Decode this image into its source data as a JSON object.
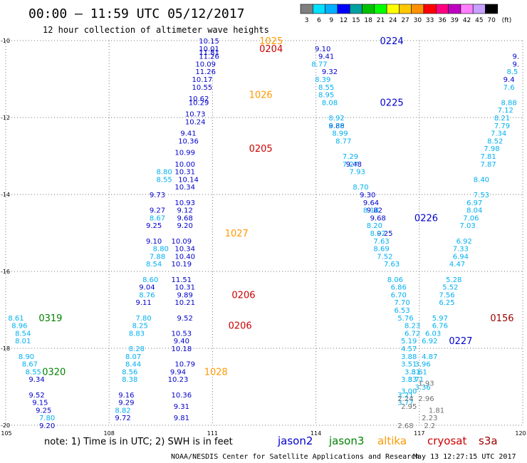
{
  "chart_data": {
    "type": "scatter",
    "title": "00:00 – 11:59 UTC 05/12/2017",
    "subtitle": "12 hour collection of altimeter wave heights",
    "x_ticks": [
      "105",
      "108",
      "111",
      "114",
      "117",
      "120"
    ],
    "y_ticks": [
      "-10",
      "-12",
      "-14",
      "-16",
      "-18",
      "-20"
    ],
    "xlim": [
      105,
      120
    ],
    "ylim": [
      -20,
      -10
    ],
    "grid": true,
    "legend": {
      "labels": [
        "3",
        "6",
        "9",
        "12",
        "15",
        "18",
        "21",
        "24",
        "27",
        "30",
        "33",
        "36",
        "39",
        "42",
        "45",
        "70",
        "(ft)"
      ],
      "colors": [
        "#7f7f7f",
        "#00e0ff",
        "#00b0ff",
        "#0000ff",
        "#00a0a0",
        "#00c000",
        "#00ff00",
        "#ffff00",
        "#ffc800",
        "#ff9000",
        "#ff0000",
        "#ff0080",
        "#c000c0",
        "#ff80ff",
        "#c8a0ff",
        "#000000"
      ]
    },
    "sat_colors": {
      "j2": "#0000cc",
      "j3": "#008000",
      "alt": "#ff9900",
      "cry": "#cc0000",
      "s3a": "#990000"
    },
    "value_colors": {
      "light": "#00b0f0",
      "gray": "#707070"
    },
    "series": [
      {
        "name": "jason2",
        "values": [
          {
            "x": 110.9,
            "y": -10.0,
            "v": "10.15"
          },
          {
            "x": 110.9,
            "y": -10.2,
            "v": "10.01"
          },
          {
            "x": 110.9,
            "y": -10.3,
            "v": "11.81"
          },
          {
            "x": 110.9,
            "y": -10.4,
            "v": "11.26"
          },
          {
            "x": 110.8,
            "y": -10.6,
            "v": "10.09"
          },
          {
            "x": 110.8,
            "y": -10.8,
            "v": "11.26"
          },
          {
            "x": 110.7,
            "y": -11.0,
            "v": "10.17"
          },
          {
            "x": 110.7,
            "y": -11.2,
            "v": "10.55"
          },
          {
            "x": 110.6,
            "y": -11.5,
            "v": "10.62"
          },
          {
            "x": 110.6,
            "y": -11.6,
            "v": "10.29"
          },
          {
            "x": 110.5,
            "y": -11.9,
            "v": "10.73"
          },
          {
            "x": 110.5,
            "y": -12.1,
            "v": "10.24"
          },
          {
            "x": 110.3,
            "y": -12.4,
            "v": "9.41"
          },
          {
            "x": 110.3,
            "y": -12.6,
            "v": "10.36"
          },
          {
            "x": 110.2,
            "y": -12.9,
            "v": "10.99"
          },
          {
            "x": 110.2,
            "y": -13.2,
            "v": "10.00"
          },
          {
            "x": 110.2,
            "y": -13.4,
            "v": "10.31"
          },
          {
            "x": 110.3,
            "y": -13.6,
            "v": "10.14"
          },
          {
            "x": 110.2,
            "y": -13.8,
            "v": "10.34"
          },
          {
            "x": 110.2,
            "y": -14.2,
            "v": "10.93"
          },
          {
            "x": 110.2,
            "y": -14.4,
            "v": "9.12"
          },
          {
            "x": 110.2,
            "y": -14.6,
            "v": "9.68"
          },
          {
            "x": 110.2,
            "y": -14.8,
            "v": "9.20"
          },
          {
            "x": 110.1,
            "y": -15.2,
            "v": "10.09"
          },
          {
            "x": 110.2,
            "y": -15.4,
            "v": "10.34"
          },
          {
            "x": 110.2,
            "y": -15.6,
            "v": "10.40"
          },
          {
            "x": 110.1,
            "y": -15.8,
            "v": "10.19"
          },
          {
            "x": 110.1,
            "y": -16.2,
            "v": "11.51"
          },
          {
            "x": 110.2,
            "y": -16.4,
            "v": "10.31"
          },
          {
            "x": 110.2,
            "y": -16.6,
            "v": "9.89"
          },
          {
            "x": 110.2,
            "y": -16.8,
            "v": "10.21"
          },
          {
            "x": 110.2,
            "y": -17.2,
            "v": "9.52"
          },
          {
            "x": 110.1,
            "y": -17.6,
            "v": "10.53"
          },
          {
            "x": 110.1,
            "y": -17.8,
            "v": "9.40"
          },
          {
            "x": 110.1,
            "y": -18.0,
            "v": "10.18"
          },
          {
            "x": 110.2,
            "y": -18.4,
            "v": "10.79"
          },
          {
            "x": 110.0,
            "y": -18.6,
            "v": "9.94"
          },
          {
            "x": 110.0,
            "y": -18.8,
            "v": "10.23"
          },
          {
            "x": 110.1,
            "y": -19.2,
            "v": "10.36"
          },
          {
            "x": 110.1,
            "y": -19.5,
            "v": "9.31"
          },
          {
            "x": 110.1,
            "y": -19.8,
            "v": "9.81"
          },
          {
            "x": 114.2,
            "y": -10.2,
            "v": "9.10"
          },
          {
            "x": 114.3,
            "y": -10.4,
            "v": "9.41"
          },
          {
            "x": 114.4,
            "y": -10.8,
            "v": "9.32"
          },
          {
            "x": 114.6,
            "y": -12.2,
            "v": "9.88"
          },
          {
            "x": 115.1,
            "y": -13.2,
            "v": "9.48"
          },
          {
            "x": 115.5,
            "y": -14.0,
            "v": "9.30"
          },
          {
            "x": 115.6,
            "y": -14.2,
            "v": "9.64"
          },
          {
            "x": 115.7,
            "y": -14.4,
            "v": "9.82"
          },
          {
            "x": 115.8,
            "y": -14.6,
            "v": "9.68"
          },
          {
            "x": 116.0,
            "y": -15.0,
            "v": "9.25"
          },
          {
            "x": 114.1,
            "y": -10.6,
            "v": "8.77"
          },
          {
            "x": 114.2,
            "y": -11.0,
            "v": "8.39"
          },
          {
            "x": 114.3,
            "y": -11.2,
            "v": "8.55"
          },
          {
            "x": 114.3,
            "y": -11.4,
            "v": "8.95"
          },
          {
            "x": 114.4,
            "y": -11.6,
            "v": "8.08"
          },
          {
            "x": 114.6,
            "y": -12.0,
            "v": "8.92"
          },
          {
            "x": 114.6,
            "y": -12.2,
            "v": "8.50"
          },
          {
            "x": 114.7,
            "y": -12.4,
            "v": "8.99"
          },
          {
            "x": 114.8,
            "y": -12.6,
            "v": "8.77"
          },
          {
            "x": 115.0,
            "y": -13.0,
            "v": "7.29"
          },
          {
            "x": 115.0,
            "y": -13.2,
            "v": "7.27"
          },
          {
            "x": 115.2,
            "y": -13.4,
            "v": "7.93"
          },
          {
            "x": 115.3,
            "y": -13.8,
            "v": "8.70"
          },
          {
            "x": 115.6,
            "y": -14.4,
            "v": "8.14"
          },
          {
            "x": 115.7,
            "y": -14.8,
            "v": "8.20"
          },
          {
            "x": 115.8,
            "y": -15.0,
            "v": "8.07"
          },
          {
            "x": 115.9,
            "y": -15.2,
            "v": "7.63"
          },
          {
            "x": 115.9,
            "y": -15.4,
            "v": "8.69"
          },
          {
            "x": 116.0,
            "y": -15.6,
            "v": "7.52"
          },
          {
            "x": 116.2,
            "y": -15.8,
            "v": "7.63"
          },
          {
            "x": 116.3,
            "y": -16.2,
            "v": "8.06"
          },
          {
            "x": 116.4,
            "y": -16.4,
            "v": "6.86"
          },
          {
            "x": 116.4,
            "y": -16.6,
            "v": "6.70"
          },
          {
            "x": 116.5,
            "y": -16.8,
            "v": "7.70"
          },
          {
            "x": 116.5,
            "y": -17.0,
            "v": "6.53"
          },
          {
            "x": 116.6,
            "y": -17.2,
            "v": "5.76"
          },
          {
            "x": 116.8,
            "y": -17.4,
            "v": "8.23"
          },
          {
            "x": 116.8,
            "y": -17.6,
            "v": "6.72"
          },
          {
            "x": 116.7,
            "y": -17.8,
            "v": "5.19"
          },
          {
            "x": 116.7,
            "y": -18.0,
            "v": "4.57"
          },
          {
            "x": 116.7,
            "y": -18.2,
            "v": "3.88"
          },
          {
            "x": 116.7,
            "y": -18.4,
            "v": "3.51"
          },
          {
            "x": 116.8,
            "y": -18.6,
            "v": "3.81"
          },
          {
            "x": 116.7,
            "y": -18.8,
            "v": "3.83"
          },
          {
            "x": 119.8,
            "y": -10.4,
            "v": "9."
          },
          {
            "x": 119.8,
            "y": -10.6,
            "v": "9."
          },
          {
            "x": 119.7,
            "y": -10.8,
            "v": "8.5"
          },
          {
            "x": 119.6,
            "y": -11.0,
            "v": "9.4"
          },
          {
            "x": 119.6,
            "y": -11.2,
            "v": "7.6"
          },
          {
            "x": 119.6,
            "y": -11.6,
            "v": "8.88"
          },
          {
            "x": 119.5,
            "y": -11.8,
            "v": "7.12"
          },
          {
            "x": 119.4,
            "y": -12.0,
            "v": "8.21"
          },
          {
            "x": 119.4,
            "y": -12.2,
            "v": "7.79"
          },
          {
            "x": 119.3,
            "y": -12.4,
            "v": "7.34"
          },
          {
            "x": 119.2,
            "y": -12.6,
            "v": "8.52"
          },
          {
            "x": 119.1,
            "y": -12.8,
            "v": "7.98"
          },
          {
            "x": 119.0,
            "y": -13.0,
            "v": "7.81"
          },
          {
            "x": 119.0,
            "y": -13.2,
            "v": "7.87"
          },
          {
            "x": 118.8,
            "y": -13.6,
            "v": "8.40"
          },
          {
            "x": 118.8,
            "y": -14.0,
            "v": "7.53"
          },
          {
            "x": 118.6,
            "y": -14.2,
            "v": "6.97"
          },
          {
            "x": 118.6,
            "y": -14.4,
            "v": "8.04"
          },
          {
            "x": 118.5,
            "y": -14.6,
            "v": "7.06"
          },
          {
            "x": 118.4,
            "y": -14.8,
            "v": "7.03"
          },
          {
            "x": 118.3,
            "y": -15.2,
            "v": "6.92"
          },
          {
            "x": 118.2,
            "y": -15.4,
            "v": "7.33"
          },
          {
            "x": 118.2,
            "y": -15.6,
            "v": "6.94"
          },
          {
            "x": 118.1,
            "y": -15.8,
            "v": "4.47"
          },
          {
            "x": 118.0,
            "y": -16.2,
            "v": "5.28"
          },
          {
            "x": 117.9,
            "y": -16.4,
            "v": "5.52"
          },
          {
            "x": 117.8,
            "y": -16.6,
            "v": "7.56"
          },
          {
            "x": 117.8,
            "y": -16.8,
            "v": "6.25"
          },
          {
            "x": 117.6,
            "y": -17.2,
            "v": "5.97"
          },
          {
            "x": 117.6,
            "y": -17.4,
            "v": "6.76"
          },
          {
            "x": 117.4,
            "y": -17.6,
            "v": "6.03"
          },
          {
            "x": 117.3,
            "y": -17.8,
            "v": "6.92"
          },
          {
            "x": 117.3,
            "y": -18.2,
            "v": "4.87"
          },
          {
            "x": 117.1,
            "y": -18.4,
            "v": "3.96"
          },
          {
            "x": 117.0,
            "y": -18.6,
            "v": "3.61"
          },
          {
            "x": 116.9,
            "y": -18.8,
            "v": "3.71"
          },
          {
            "x": 117.1,
            "y": -19.0,
            "v": "3.36"
          },
          {
            "x": 116.6,
            "y": -19.2,
            "v": "3.21"
          },
          {
            "x": 116.6,
            "y": -19.4,
            "v": "3.77"
          },
          {
            "x": 116.7,
            "y": -19.1,
            "v": "3.00"
          },
          {
            "x": 117.2,
            "y": -18.9,
            "v": "1.93"
          },
          {
            "x": 116.6,
            "y": -19.3,
            "v": "2.24"
          },
          {
            "x": 117.2,
            "y": -19.3,
            "v": "2.96"
          },
          {
            "x": 116.7,
            "y": -19.5,
            "v": "2.95"
          },
          {
            "x": 117.5,
            "y": -19.6,
            "v": "1.81"
          },
          {
            "x": 117.3,
            "y": -19.8,
            "v": "2.23"
          },
          {
            "x": 116.6,
            "y": -20.0,
            "v": "2.68"
          },
          {
            "x": 117.3,
            "y": -20.0,
            "v": "2.2"
          },
          {
            "x": 109.6,
            "y": -13.4,
            "v": "8.80"
          },
          {
            "x": 109.6,
            "y": -13.6,
            "v": "8.55"
          },
          {
            "x": 109.4,
            "y": -14.0,
            "v": "9.73"
          },
          {
            "x": 109.4,
            "y": -14.4,
            "v": "9.27"
          },
          {
            "x": 109.4,
            "y": -14.6,
            "v": "8.67"
          },
          {
            "x": 109.3,
            "y": -14.8,
            "v": "9.25"
          },
          {
            "x": 109.3,
            "y": -15.2,
            "v": "9.10"
          },
          {
            "x": 109.5,
            "y": -15.4,
            "v": "8.80"
          },
          {
            "x": 109.4,
            "y": -15.6,
            "v": "7.88"
          },
          {
            "x": 109.3,
            "y": -15.8,
            "v": "8.54"
          },
          {
            "x": 109.2,
            "y": -16.2,
            "v": "8.60"
          },
          {
            "x": 109.1,
            "y": -16.4,
            "v": "9.04"
          },
          {
            "x": 109.1,
            "y": -16.6,
            "v": "8.76"
          },
          {
            "x": 109.0,
            "y": -16.8,
            "v": "9.11"
          },
          {
            "x": 109.0,
            "y": -17.2,
            "v": "7.80"
          },
          {
            "x": 108.9,
            "y": -17.4,
            "v": "8.25"
          },
          {
            "x": 108.8,
            "y": -17.6,
            "v": "8.83"
          },
          {
            "x": 108.8,
            "y": -18.0,
            "v": "8.28"
          },
          {
            "x": 108.7,
            "y": -18.2,
            "v": "8.07"
          },
          {
            "x": 108.7,
            "y": -18.4,
            "v": "8.44"
          },
          {
            "x": 108.6,
            "y": -18.6,
            "v": "8.56"
          },
          {
            "x": 108.6,
            "y": -18.8,
            "v": "8.38"
          },
          {
            "x": 108.5,
            "y": -19.2,
            "v": "9.16"
          },
          {
            "x": 108.5,
            "y": -19.4,
            "v": "9.29"
          },
          {
            "x": 108.4,
            "y": -19.6,
            "v": "8.82"
          },
          {
            "x": 108.4,
            "y": -19.8,
            "v": "9.72"
          },
          {
            "x": 105.3,
            "y": -17.2,
            "v": "8.61"
          },
          {
            "x": 105.4,
            "y": -17.4,
            "v": "8.96"
          },
          {
            "x": 105.5,
            "y": -17.6,
            "v": "8.54"
          },
          {
            "x": 105.5,
            "y": -17.8,
            "v": "8.01"
          },
          {
            "x": 105.6,
            "y": -18.2,
            "v": "8.90"
          },
          {
            "x": 105.7,
            "y": -18.4,
            "v": "8.67"
          },
          {
            "x": 105.8,
            "y": -18.6,
            "v": "8.55"
          },
          {
            "x": 105.9,
            "y": -18.8,
            "v": "9.34"
          },
          {
            "x": 105.9,
            "y": -19.2,
            "v": "9.52"
          },
          {
            "x": 106.0,
            "y": -19.4,
            "v": "9.15"
          },
          {
            "x": 106.1,
            "y": -19.6,
            "v": "9.25"
          },
          {
            "x": 106.2,
            "y": -19.8,
            "v": "7.80"
          },
          {
            "x": 106.2,
            "y": -20.0,
            "v": "9.20"
          }
        ]
      }
    ],
    "passes": [
      {
        "x": 112.7,
        "y": -10.0,
        "v": "1025",
        "sat": "alt"
      },
      {
        "x": 112.7,
        "y": -10.2,
        "v": "0204",
        "sat": "cry"
      },
      {
        "x": 112.4,
        "y": -11.4,
        "v": "1026",
        "sat": "alt"
      },
      {
        "x": 112.4,
        "y": -12.8,
        "v": "0205",
        "sat": "cry"
      },
      {
        "x": 111.7,
        "y": -15.0,
        "v": "1027",
        "sat": "alt"
      },
      {
        "x": 111.9,
        "y": -16.6,
        "v": "0206",
        "sat": "cry"
      },
      {
        "x": 111.8,
        "y": -17.4,
        "v": "0206",
        "sat": "cry"
      },
      {
        "x": 111.1,
        "y": -18.6,
        "v": "1028",
        "sat": "alt"
      },
      {
        "x": 116.2,
        "y": -10.0,
        "v": "0224",
        "sat": "j2"
      },
      {
        "x": 116.2,
        "y": -11.6,
        "v": "0225",
        "sat": "j2"
      },
      {
        "x": 117.2,
        "y": -14.6,
        "v": "0226",
        "sat": "j2"
      },
      {
        "x": 118.2,
        "y": -17.8,
        "v": "0227",
        "sat": "j2"
      },
      {
        "x": 119.4,
        "y": -17.2,
        "v": "0156",
        "sat": "s3a"
      },
      {
        "x": 106.3,
        "y": -17.2,
        "v": "0319",
        "sat": "j3"
      },
      {
        "x": 106.4,
        "y": -18.6,
        "v": "0320",
        "sat": "j3"
      }
    ]
  },
  "footer": {
    "note": "note:  1) Time is in UTC;  2) SWH is in feet",
    "sat_labels": [
      "jason2",
      "jason3",
      "altika",
      "cryosat",
      "s3a"
    ],
    "credit": "NOAA/NESDIS Center for Satellite Applications and Research",
    "timestamp": "May 13 12:27:15 UTC 2017"
  }
}
